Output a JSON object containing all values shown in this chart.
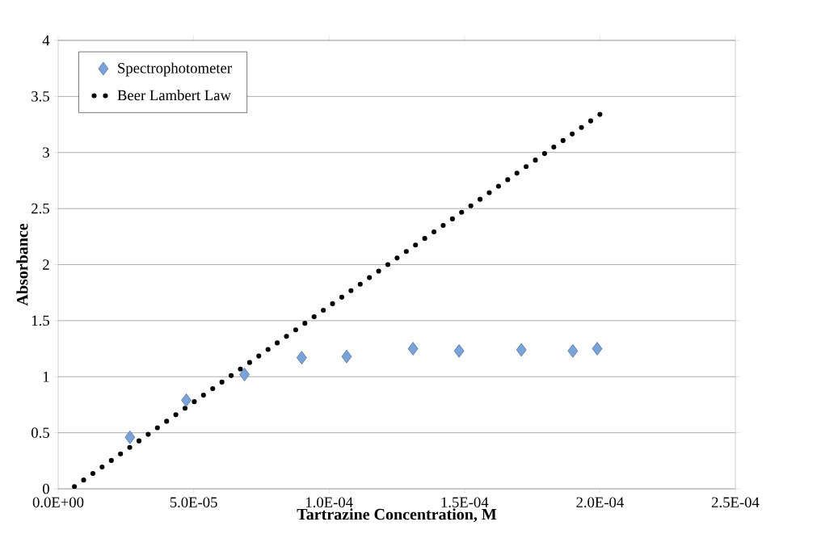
{
  "chart_data": {
    "type": "scatter",
    "xlabel": "Tartrazine Concentration, M",
    "ylabel": "Absorbance",
    "xlim": [
      0,
      0.00025
    ],
    "ylim": [
      0,
      4
    ],
    "xticks": [
      {
        "value": 0,
        "label": "0.0E+00"
      },
      {
        "value": 5e-05,
        "label": "5.0E-05"
      },
      {
        "value": 0.0001,
        "label": "1.0E-04"
      },
      {
        "value": 0.00015,
        "label": "1.5E-04"
      },
      {
        "value": 0.0002,
        "label": "2.0E-04"
      },
      {
        "value": 0.00025,
        "label": "2.5E-04"
      }
    ],
    "yticks": [
      0,
      0.5,
      1,
      1.5,
      2,
      2.5,
      3,
      3.5,
      4
    ],
    "grid": "y",
    "legend": "top left",
    "series": [
      {
        "name": "Spectrophotometer",
        "marker": "diamond",
        "color": "#7aa3d9",
        "x": [
          2.65e-05,
          4.73e-05,
          6.88e-05,
          8.99e-05,
          0.0001065,
          0.000131,
          0.000148,
          0.000171,
          0.00019,
          0.000199
        ],
        "values": [
          0.46,
          0.79,
          1.02,
          1.17,
          1.18,
          1.25,
          1.23,
          1.24,
          1.23,
          1.25
        ]
      },
      {
        "name": "Beer Lambert Law",
        "type": "line",
        "marker": "none",
        "line_style": "dotted",
        "color": "#000000",
        "x": [
          6e-06,
          0.0002
        ],
        "values": [
          0.02,
          3.34
        ]
      }
    ]
  }
}
